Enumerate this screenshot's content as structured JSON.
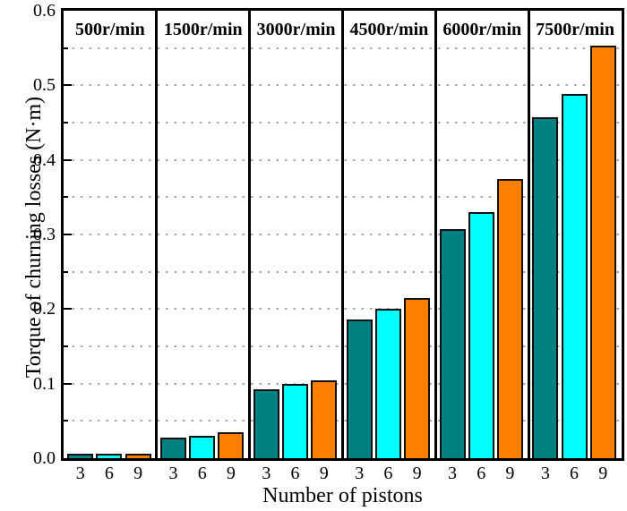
{
  "chart_data": {
    "type": "bar",
    "title": "",
    "xlabel": "Number of pistons",
    "ylabel": "Torque of churning losses (N·m)",
    "ylim": [
      0,
      0.6
    ],
    "y_major_step": 0.1,
    "y_minor_step": 0.05,
    "grid": "horizontal dotted lines every 0.05",
    "legend": "none",
    "categories": [
      "3",
      "6",
      "9"
    ],
    "series_colors": [
      "#008080",
      "#00FFFF",
      "#FF8000"
    ],
    "bar_border_color": "#101010",
    "panels": [
      {
        "label": "500r/min",
        "values": [
          0.006,
          0.006,
          0.006
        ]
      },
      {
        "label": "1500r/min",
        "values": [
          0.028,
          0.03,
          0.035
        ]
      },
      {
        "label": "3000r/min",
        "values": [
          0.093,
          0.1,
          0.105
        ]
      },
      {
        "label": "4500r/min",
        "values": [
          0.186,
          0.2,
          0.215
        ]
      },
      {
        "label": "6000r/min",
        "values": [
          0.307,
          0.33,
          0.375
        ]
      },
      {
        "label": "7500r/min",
        "values": [
          0.457,
          0.489,
          0.553
        ]
      }
    ]
  }
}
